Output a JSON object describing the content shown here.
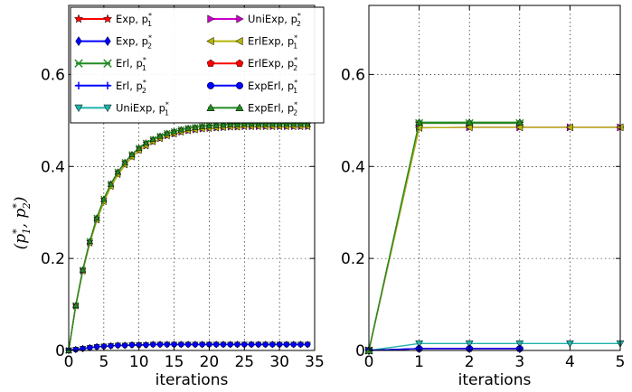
{
  "chart_data": [
    {
      "type": "line",
      "panel": "left",
      "xlabel": "iterations",
      "ylabel": "(p*1, p*2)",
      "ylabel_parts": [
        "(p",
        "*",
        "1",
        ", p",
        "*",
        "2",
        ")"
      ],
      "xlim": [
        0,
        35
      ],
      "ylim": [
        0,
        0.75
      ],
      "xticks": [
        0,
        5,
        10,
        15,
        20,
        25,
        30,
        35
      ],
      "xtick_labels": [
        "0",
        "5",
        "10",
        "15",
        "20",
        "25",
        "30",
        "35"
      ],
      "yticks": [
        0,
        0.2,
        0.4,
        0.6
      ],
      "ytick_labels": [
        "0",
        "0.2",
        "0.4",
        "0.6"
      ],
      "grid": true,
      "legend_placement": "top",
      "x": [
        0,
        1,
        2,
        3,
        4,
        5,
        6,
        7,
        8,
        9,
        10,
        11,
        12,
        13,
        14,
        15,
        16,
        17,
        18,
        19,
        20,
        21,
        22,
        23,
        24,
        25,
        26,
        27,
        28,
        29,
        30,
        31,
        32,
        33,
        34
      ],
      "series": [
        {
          "name": "Exp, p1*",
          "label_parts": [
            "Exp, p",
            "*",
            "1"
          ],
          "color": "#ff0000",
          "marker": "star",
          "values": [
            0,
            0.098,
            0.175,
            0.237,
            0.288,
            0.329,
            0.362,
            0.388,
            0.409,
            0.426,
            0.44,
            0.451,
            0.459,
            0.466,
            0.472,
            0.476,
            0.48,
            0.483,
            0.485,
            0.487,
            0.488,
            0.489,
            0.49,
            0.491,
            0.491,
            0.492,
            0.492,
            0.492,
            0.492,
            0.492,
            0.492,
            0.492,
            0.492,
            0.492,
            0.492
          ]
        },
        {
          "name": "Exp, p2*",
          "label_parts": [
            "Exp, p",
            "*",
            "2"
          ],
          "color": "#0000ff",
          "marker": "diamond",
          "values": [
            0,
            0.002,
            0.004,
            0.006,
            0.008,
            0.009,
            0.01,
            0.011,
            0.011,
            0.012,
            0.012,
            0.012,
            0.013,
            0.013,
            0.013,
            0.013,
            0.013,
            0.013,
            0.013,
            0.013,
            0.013,
            0.013,
            0.013,
            0.013,
            0.013,
            0.013,
            0.013,
            0.013,
            0.013,
            0.013,
            0.013,
            0.013,
            0.013,
            0.013,
            0.013
          ]
        },
        {
          "name": "Erl, p1*",
          "label_parts": [
            "Erl, p",
            "*",
            "1"
          ],
          "color": "#228b22",
          "marker": "x",
          "values": [
            0,
            0.098,
            0.175,
            0.237,
            0.288,
            0.329,
            0.362,
            0.388,
            0.409,
            0.426,
            0.44,
            0.451,
            0.459,
            0.466,
            0.472,
            0.476,
            0.48,
            0.483,
            0.485,
            0.487,
            0.488,
            0.489,
            0.49,
            0.491,
            0.491,
            0.492,
            0.492,
            0.492,
            0.492,
            0.492,
            0.492,
            0.492,
            0.492,
            0.492,
            0.492
          ]
        },
        {
          "name": "Erl, p2*",
          "label_parts": [
            "Erl, p",
            "*",
            "2"
          ],
          "color": "#0000ff",
          "marker": "plus",
          "values": [
            0,
            0.002,
            0.004,
            0.006,
            0.008,
            0.009,
            0.01,
            0.011,
            0.011,
            0.012,
            0.012,
            0.012,
            0.013,
            0.013,
            0.013,
            0.013,
            0.013,
            0.013,
            0.013,
            0.013,
            0.013,
            0.013,
            0.013,
            0.013,
            0.013,
            0.013,
            0.013,
            0.013,
            0.013,
            0.013,
            0.013,
            0.013,
            0.013,
            0.013,
            0.013
          ]
        },
        {
          "name": "UniExp, p1*",
          "label_parts": [
            "UniExp, p",
            "*",
            "1"
          ],
          "color": "#20b2aa",
          "marker": "triangle-down",
          "values": [
            0,
            0.002,
            0.004,
            0.006,
            0.008,
            0.009,
            0.01,
            0.011,
            0.011,
            0.012,
            0.012,
            0.012,
            0.013,
            0.013,
            0.013,
            0.013,
            0.013,
            0.013,
            0.013,
            0.013,
            0.013,
            0.013,
            0.013,
            0.013,
            0.013,
            0.013,
            0.013,
            0.013,
            0.013,
            0.013,
            0.013,
            0.013,
            0.013,
            0.013,
            0.013
          ]
        },
        {
          "name": "UniExp, p2*",
          "label_parts": [
            "UniExp, p",
            "*",
            "2"
          ],
          "color": "#cc00cc",
          "marker": "triangle-right",
          "values": [
            0,
            0.096,
            0.172,
            0.233,
            0.283,
            0.323,
            0.356,
            0.382,
            0.403,
            0.42,
            0.434,
            0.444,
            0.453,
            0.46,
            0.466,
            0.47,
            0.474,
            0.477,
            0.479,
            0.481,
            0.482,
            0.483,
            0.484,
            0.485,
            0.485,
            0.486,
            0.486,
            0.486,
            0.486,
            0.486,
            0.486,
            0.486,
            0.486,
            0.486,
            0.486
          ]
        },
        {
          "name": "ErlExp, p1*",
          "label_parts": [
            "ErlExp, p",
            "*",
            "1"
          ],
          "color": "#b5b500",
          "marker": "triangle-left",
          "values": [
            0,
            0.096,
            0.172,
            0.233,
            0.283,
            0.323,
            0.356,
            0.382,
            0.403,
            0.42,
            0.434,
            0.444,
            0.453,
            0.46,
            0.466,
            0.47,
            0.474,
            0.477,
            0.479,
            0.481,
            0.482,
            0.483,
            0.484,
            0.485,
            0.485,
            0.486,
            0.486,
            0.486,
            0.486,
            0.486,
            0.486,
            0.486,
            0.486,
            0.486,
            0.486
          ]
        },
        {
          "name": "ErlExp, p2*",
          "label_parts": [
            "ErlExp, p",
            "*",
            "2"
          ],
          "color": "#ff0000",
          "marker": "pentagon",
          "values": [
            0,
            0.002,
            0.004,
            0.006,
            0.008,
            0.009,
            0.01,
            0.011,
            0.011,
            0.012,
            0.012,
            0.012,
            0.013,
            0.013,
            0.013,
            0.013,
            0.013,
            0.013,
            0.013,
            0.013,
            0.013,
            0.013,
            0.013,
            0.013,
            0.013,
            0.013,
            0.013,
            0.013,
            0.013,
            0.013,
            0.013,
            0.013,
            0.013,
            0.013,
            0.013
          ]
        },
        {
          "name": "ExpErl, p1*",
          "label_parts": [
            "ExpErl, p",
            "*",
            "1"
          ],
          "color": "#0000ff",
          "marker": "circle",
          "values": [
            0,
            0.002,
            0.004,
            0.006,
            0.008,
            0.009,
            0.01,
            0.011,
            0.011,
            0.012,
            0.012,
            0.012,
            0.013,
            0.013,
            0.013,
            0.013,
            0.013,
            0.013,
            0.013,
            0.013,
            0.013,
            0.013,
            0.013,
            0.013,
            0.013,
            0.013,
            0.013,
            0.013,
            0.013,
            0.013,
            0.013,
            0.013,
            0.013,
            0.013,
            0.013
          ]
        },
        {
          "name": "ExpErl, p2*",
          "label_parts": [
            "ExpErl, p",
            "*",
            "2"
          ],
          "color": "#228b22",
          "marker": "triangle-up",
          "values": [
            0,
            0.098,
            0.175,
            0.237,
            0.288,
            0.329,
            0.362,
            0.388,
            0.409,
            0.426,
            0.44,
            0.451,
            0.459,
            0.466,
            0.472,
            0.476,
            0.48,
            0.483,
            0.485,
            0.487,
            0.488,
            0.489,
            0.49,
            0.491,
            0.491,
            0.492,
            0.492,
            0.492,
            0.492,
            0.492,
            0.492,
            0.492,
            0.492,
            0.492,
            0.492
          ]
        }
      ]
    },
    {
      "type": "line",
      "panel": "right",
      "xlabel": "iterations",
      "ylabel": "",
      "xlim": [
        0,
        5
      ],
      "ylim": [
        0,
        0.75
      ],
      "xticks": [
        0,
        1,
        2,
        3,
        4,
        5
      ],
      "xtick_labels": [
        "0",
        "1",
        "2",
        "3",
        "4",
        "5"
      ],
      "yticks": [
        0,
        0.2,
        0.4,
        0.6
      ],
      "ytick_labels": [
        "0",
        "0.2",
        "0.4",
        "0.6"
      ],
      "grid": true,
      "series": [
        {
          "name": "Exp, p1*",
          "color": "#ff0000",
          "marker": "star",
          "x": [
            0,
            1,
            2,
            3
          ],
          "values": [
            0,
            0.494,
            0.494,
            0.494
          ]
        },
        {
          "name": "Exp, p2*",
          "color": "#0000ff",
          "marker": "diamond",
          "x": [
            0,
            1,
            2,
            3
          ],
          "values": [
            0,
            0.004,
            0.004,
            0.004
          ]
        },
        {
          "name": "Erl, p1*",
          "color": "#228b22",
          "marker": "x",
          "x": [
            0,
            1,
            2,
            3
          ],
          "values": [
            0,
            0.494,
            0.494,
            0.494
          ]
        },
        {
          "name": "Erl, p2*",
          "color": "#0000ff",
          "marker": "plus",
          "x": [
            0,
            1,
            2,
            3
          ],
          "values": [
            0,
            0.004,
            0.004,
            0.004
          ]
        },
        {
          "name": "UniExp, p1*",
          "color": "#20b2aa",
          "marker": "triangle-down",
          "x": [
            0,
            1,
            2,
            3,
            4,
            5
          ],
          "values": [
            0,
            0.015,
            0.015,
            0.015,
            0.015,
            0.015
          ]
        },
        {
          "name": "UniExp, p2*",
          "color": "#cc00cc",
          "marker": "triangle-right",
          "x": [
            0,
            1,
            2,
            3,
            4,
            5
          ],
          "values": [
            0,
            0.484,
            0.485,
            0.485,
            0.485,
            0.485
          ]
        },
        {
          "name": "ErlExp, p1*",
          "color": "#b5b500",
          "marker": "triangle-left",
          "x": [
            0,
            1,
            2,
            3,
            4,
            5
          ],
          "values": [
            0,
            0.484,
            0.485,
            0.485,
            0.485,
            0.485
          ]
        },
        {
          "name": "ErlExp, p2*",
          "color": "#ff0000",
          "marker": "pentagon",
          "x": [
            0,
            1,
            2,
            3
          ],
          "values": [
            0,
            0.004,
            0.004,
            0.004
          ]
        },
        {
          "name": "ExpErl, p1*",
          "color": "#0000ff",
          "marker": "circle",
          "x": [
            0,
            1,
            2,
            3
          ],
          "values": [
            0,
            0.004,
            0.004,
            0.004
          ]
        },
        {
          "name": "ExpErl, p2*",
          "color": "#228b22",
          "marker": "triangle-up",
          "x": [
            0,
            1,
            2,
            3
          ],
          "values": [
            0,
            0.496,
            0.496,
            0.496
          ]
        }
      ]
    }
  ]
}
